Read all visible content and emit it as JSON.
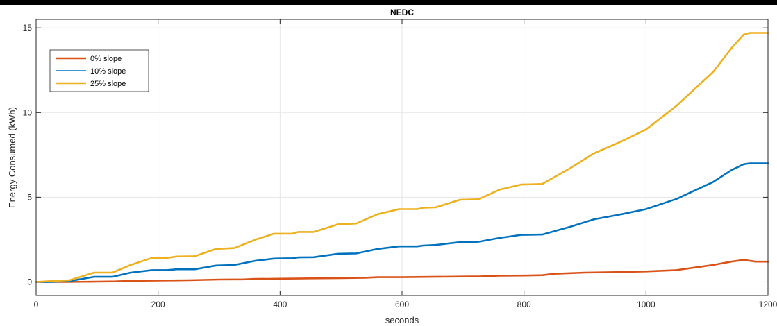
{
  "chart_data": {
    "type": "line",
    "title": "NEDC",
    "xlabel": "seconds",
    "ylabel": "Energy Consumed (kWh)",
    "xlim": [
      0,
      1200
    ],
    "ylim": [
      -0.8,
      15.5
    ],
    "xticks": [
      0,
      200,
      400,
      600,
      800,
      1000,
      1200
    ],
    "yticks": [
      0,
      5,
      10,
      15
    ],
    "grid": true,
    "legend": "top-left",
    "series": [
      {
        "name": "0% slope",
        "color": "#d95319",
        "points": [
          [
            0,
            0
          ],
          [
            50,
            0
          ],
          [
            100,
            0.02
          ],
          [
            130,
            0.03
          ],
          [
            150,
            0.06
          ],
          [
            200,
            0.08
          ],
          [
            250,
            0.1
          ],
          [
            300,
            0.14
          ],
          [
            340,
            0.15
          ],
          [
            360,
            0.18
          ],
          [
            400,
            0.19
          ],
          [
            450,
            0.21
          ],
          [
            500,
            0.23
          ],
          [
            540,
            0.25
          ],
          [
            560,
            0.28
          ],
          [
            600,
            0.28
          ],
          [
            650,
            0.3
          ],
          [
            700,
            0.32
          ],
          [
            730,
            0.33
          ],
          [
            760,
            0.37
          ],
          [
            800,
            0.38
          ],
          [
            830,
            0.4
          ],
          [
            850,
            0.48
          ],
          [
            900,
            0.55
          ],
          [
            950,
            0.58
          ],
          [
            1000,
            0.62
          ],
          [
            1050,
            0.7
          ],
          [
            1080,
            0.85
          ],
          [
            1110,
            1.0
          ],
          [
            1140,
            1.2
          ],
          [
            1160,
            1.3
          ],
          [
            1170,
            1.25
          ],
          [
            1180,
            1.2
          ],
          [
            1200,
            1.2
          ]
        ]
      },
      {
        "name": "10% slope",
        "color": "#0072bd",
        "points": [
          [
            0,
            0
          ],
          [
            25,
            0
          ],
          [
            55,
            0.05
          ],
          [
            95,
            0.3
          ],
          [
            125,
            0.3
          ],
          [
            155,
            0.55
          ],
          [
            190,
            0.7
          ],
          [
            215,
            0.7
          ],
          [
            230,
            0.75
          ],
          [
            260,
            0.75
          ],
          [
            295,
            0.97
          ],
          [
            325,
            1.0
          ],
          [
            360,
            1.25
          ],
          [
            390,
            1.38
          ],
          [
            420,
            1.4
          ],
          [
            430,
            1.45
          ],
          [
            455,
            1.46
          ],
          [
            495,
            1.66
          ],
          [
            525,
            1.68
          ],
          [
            560,
            1.95
          ],
          [
            595,
            2.1
          ],
          [
            625,
            2.1
          ],
          [
            635,
            2.15
          ],
          [
            655,
            2.18
          ],
          [
            695,
            2.35
          ],
          [
            725,
            2.37
          ],
          [
            760,
            2.6
          ],
          [
            795,
            2.78
          ],
          [
            830,
            2.8
          ],
          [
            875,
            3.25
          ],
          [
            915,
            3.7
          ],
          [
            960,
            4.0
          ],
          [
            1000,
            4.3
          ],
          [
            1050,
            4.9
          ],
          [
            1080,
            5.4
          ],
          [
            1110,
            5.9
          ],
          [
            1140,
            6.6
          ],
          [
            1160,
            6.95
          ],
          [
            1170,
            7.0
          ],
          [
            1200,
            7.0
          ]
        ]
      },
      {
        "name": "25% slope",
        "color": "#edb120",
        "points": [
          [
            0,
            0
          ],
          [
            25,
            0.05
          ],
          [
            55,
            0.1
          ],
          [
            95,
            0.55
          ],
          [
            125,
            0.55
          ],
          [
            155,
            1.0
          ],
          [
            190,
            1.42
          ],
          [
            215,
            1.42
          ],
          [
            230,
            1.5
          ],
          [
            260,
            1.52
          ],
          [
            295,
            1.95
          ],
          [
            325,
            2.0
          ],
          [
            360,
            2.5
          ],
          [
            390,
            2.85
          ],
          [
            420,
            2.85
          ],
          [
            430,
            2.95
          ],
          [
            455,
            2.95
          ],
          [
            495,
            3.4
          ],
          [
            525,
            3.45
          ],
          [
            560,
            4.0
          ],
          [
            595,
            4.3
          ],
          [
            625,
            4.3
          ],
          [
            635,
            4.38
          ],
          [
            655,
            4.4
          ],
          [
            695,
            4.85
          ],
          [
            725,
            4.88
          ],
          [
            760,
            5.45
          ],
          [
            795,
            5.75
          ],
          [
            830,
            5.78
          ],
          [
            875,
            6.7
          ],
          [
            915,
            7.6
          ],
          [
            960,
            8.3
          ],
          [
            1000,
            9.0
          ],
          [
            1050,
            10.4
          ],
          [
            1080,
            11.4
          ],
          [
            1110,
            12.4
          ],
          [
            1140,
            13.8
          ],
          [
            1160,
            14.6
          ],
          [
            1170,
            14.7
          ],
          [
            1200,
            14.7
          ]
        ]
      }
    ]
  }
}
